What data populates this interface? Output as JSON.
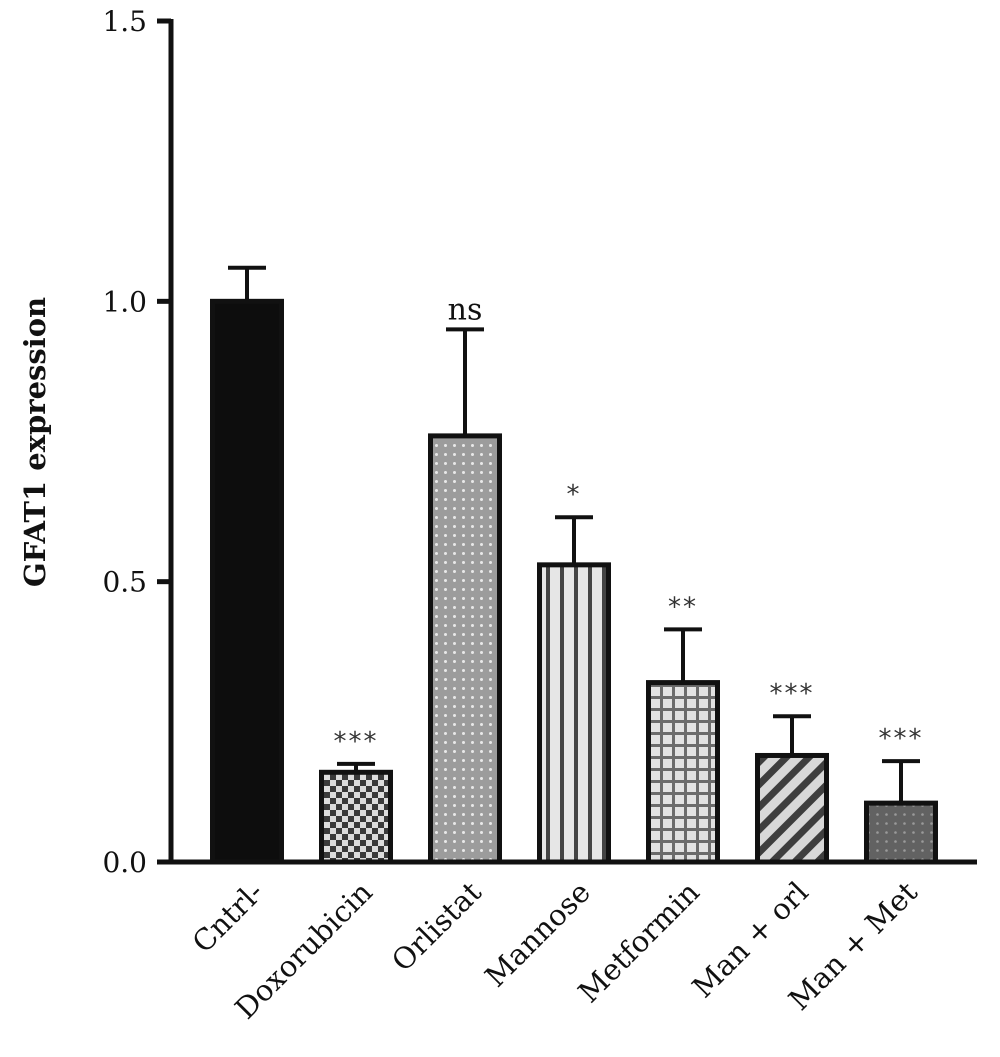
{
  "chart_data": {
    "type": "bar",
    "title": "",
    "xlabel": "",
    "ylabel": "GFAT1 expression",
    "ylim": [
      0,
      1.5
    ],
    "yticks": [
      "0.0",
      "0.5",
      "1.0",
      "1.5"
    ],
    "grid": false,
    "categories": [
      "Cntrl-",
      "Doxorubicin",
      "Orlistat",
      "Mannose",
      "Metformin",
      "Man + orl",
      "Man + Met"
    ],
    "values": [
      1.0,
      0.16,
      0.76,
      0.53,
      0.32,
      0.19,
      0.105
    ],
    "errors": [
      0.06,
      0.015,
      0.19,
      0.085,
      0.095,
      0.07,
      0.075
    ],
    "significance": [
      "",
      "***",
      "ns",
      "*",
      "**",
      "***",
      "***"
    ],
    "patterns": [
      "solid-black",
      "checkerboard",
      "dots",
      "vertical-stripes",
      "grid",
      "diagonal-stripes",
      "dark-dots"
    ]
  }
}
